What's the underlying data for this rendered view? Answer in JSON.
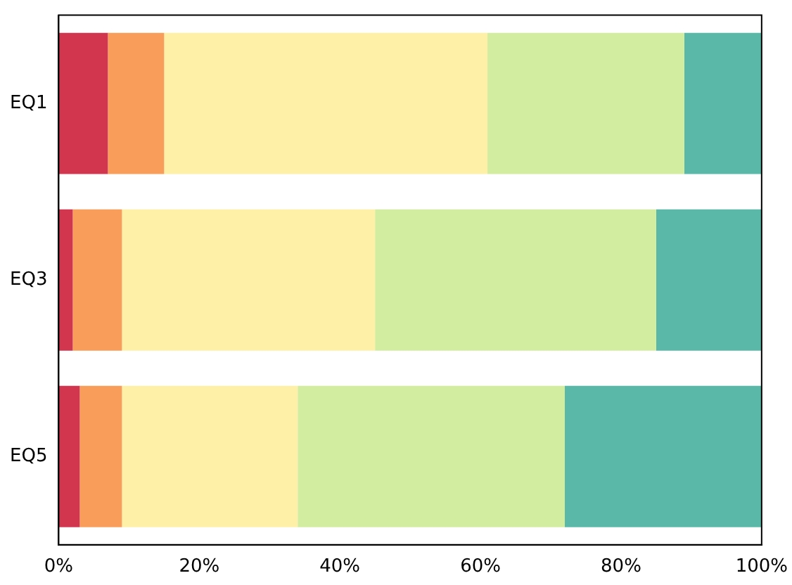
{
  "chart_data": {
    "type": "bar",
    "orientation": "horizontal",
    "stacked": true,
    "categories": [
      "EQ1",
      "EQ3",
      "EQ5"
    ],
    "series": [
      {
        "color": "#d2364f",
        "values": [
          7,
          2,
          3
        ]
      },
      {
        "color": "#f99d5a",
        "values": [
          8,
          7,
          6
        ]
      },
      {
        "color": "#fff0a8",
        "values": [
          46,
          36,
          25
        ]
      },
      {
        "color": "#d2eca0",
        "values": [
          28,
          40,
          38
        ]
      },
      {
        "color": "#5ab8a8",
        "values": [
          11,
          15,
          28
        ]
      }
    ],
    "xlim": [
      0,
      100
    ],
    "xticks": [
      {
        "value": 0,
        "label": "0%"
      },
      {
        "value": 20,
        "label": "20%"
      },
      {
        "value": 40,
        "label": "40%"
      },
      {
        "value": 60,
        "label": "60%"
      },
      {
        "value": 80,
        "label": "80%"
      },
      {
        "value": 100,
        "label": "100%"
      }
    ],
    "grid": false,
    "legend": false
  }
}
